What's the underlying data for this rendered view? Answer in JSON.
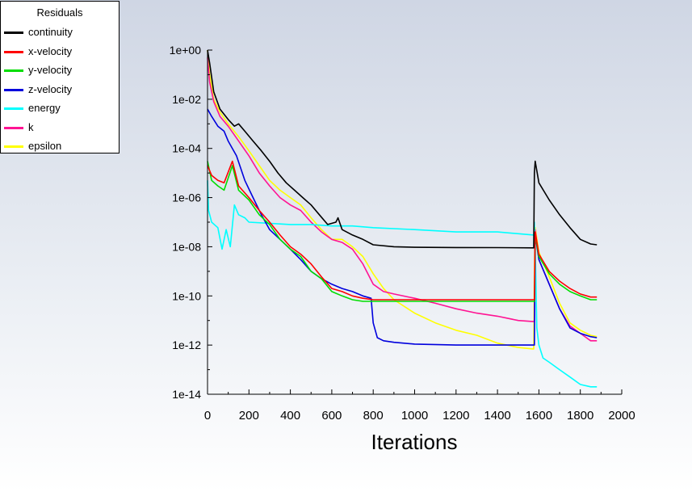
{
  "legend": {
    "title": "Residuals"
  },
  "chart_data": {
    "type": "line",
    "title": "",
    "xlabel": "Iterations",
    "ylabel": "",
    "log_y": true,
    "xlim": [
      0,
      2000
    ],
    "ylim": [
      1e-14,
      1
    ],
    "x_ticks": [
      "0",
      "200",
      "400",
      "600",
      "800",
      "1000",
      "1200",
      "1400",
      "1600",
      "1800",
      "2000"
    ],
    "y_ticks": [
      "1e+00",
      "1e-02",
      "1e-04",
      "1e-06",
      "1e-08",
      "1e-10",
      "1e-12",
      "1e-14"
    ],
    "x_tick_values": [
      0,
      200,
      400,
      600,
      800,
      1000,
      1200,
      1400,
      1600,
      1800,
      2000
    ],
    "y_tick_values": [
      1,
      0.01,
      0.0001,
      1e-06,
      1e-08,
      1e-10,
      1e-12,
      1e-14
    ],
    "grid": false,
    "legend_position": "top-left",
    "series": [
      {
        "name": "continuity",
        "color": "#000000",
        "x": [
          0,
          10,
          30,
          60,
          100,
          130,
          150,
          180,
          220,
          260,
          300,
          340,
          380,
          420,
          460,
          500,
          540,
          580,
          620,
          630,
          650,
          700,
          750,
          800,
          900,
          1000,
          1200,
          1400,
          1575,
          1578,
          1582,
          1600,
          1650,
          1700,
          1750,
          1800,
          1850,
          1880
        ],
        "y": [
          1,
          0.3,
          0.02,
          0.004,
          0.0015,
          0.0008,
          0.001,
          0.0005,
          0.0002,
          8e-05,
          3e-05,
          1e-05,
          4e-06,
          2e-06,
          1e-06,
          5e-07,
          2e-07,
          8e-08,
          1e-07,
          1.5e-07,
          5e-08,
          3e-08,
          2e-08,
          1.2e-08,
          1e-08,
          9.5e-09,
          9.3e-09,
          9.2e-09,
          9e-09,
          1e-05,
          3e-05,
          4e-06,
          8e-07,
          2e-07,
          6e-08,
          2e-08,
          1.3e-08,
          1.2e-08
        ]
      },
      {
        "name": "x-velocity",
        "color": "#ff0000",
        "x": [
          0,
          20,
          50,
          80,
          120,
          150,
          200,
          250,
          300,
          350,
          400,
          450,
          500,
          550,
          600,
          650,
          700,
          750,
          800,
          900,
          1000,
          1200,
          1400,
          1578,
          1582,
          1600,
          1650,
          1700,
          1750,
          1800,
          1850,
          1880
        ],
        "y": [
          2e-05,
          8e-06,
          5e-06,
          4e-06,
          3e-05,
          3e-06,
          1e-06,
          3e-07,
          1e-07,
          3e-08,
          1e-08,
          5e-09,
          2e-09,
          6e-10,
          2e-10,
          1.5e-10,
          1e-10,
          8e-11,
          7e-11,
          7e-11,
          7e-11,
          7e-11,
          7e-11,
          7e-11,
          4e-08,
          5e-09,
          1e-09,
          4e-10,
          2e-10,
          1.2e-10,
          9e-11,
          9e-11
        ]
      },
      {
        "name": "y-velocity",
        "color": "#00dd00",
        "x": [
          0,
          20,
          50,
          80,
          120,
          150,
          200,
          250,
          300,
          350,
          400,
          450,
          500,
          550,
          600,
          650,
          700,
          750,
          800,
          900,
          1000,
          1200,
          1400,
          1578,
          1582,
          1600,
          1650,
          1700,
          1750,
          1800,
          1850,
          1880
        ],
        "y": [
          3e-05,
          5e-06,
          3e-06,
          2e-06,
          2e-05,
          2e-06,
          8e-07,
          2e-07,
          8e-08,
          2e-08,
          8e-09,
          4e-09,
          1e-09,
          5e-10,
          1.5e-10,
          1e-10,
          7e-11,
          6e-11,
          6e-11,
          6e-11,
          6e-11,
          6e-11,
          6e-11,
          6e-11,
          3e-08,
          4e-09,
          8e-10,
          3e-10,
          1.5e-10,
          1e-10,
          7e-11,
          7e-11
        ]
      },
      {
        "name": "z-velocity",
        "color": "#0000dd",
        "x": [
          0,
          20,
          50,
          80,
          100,
          140,
          180,
          220,
          260,
          300,
          350,
          400,
          450,
          500,
          550,
          600,
          650,
          700,
          750,
          790,
          800,
          820,
          850,
          900,
          1000,
          1200,
          1400,
          1578,
          1582,
          1600,
          1650,
          1700,
          1750,
          1800,
          1850,
          1880
        ],
        "y": [
          0.004,
          0.002,
          0.0008,
          0.0005,
          0.0002,
          5e-05,
          5e-06,
          1e-06,
          2e-07,
          5e-08,
          2e-08,
          8e-09,
          3e-09,
          1e-09,
          5e-10,
          3e-10,
          2e-10,
          1.5e-10,
          1e-10,
          8e-11,
          8e-12,
          2e-12,
          1.5e-12,
          1.3e-12,
          1.1e-12,
          1e-12,
          1e-12,
          1e-12,
          3e-08,
          3e-09,
          3e-10,
          3e-11,
          5e-12,
          3e-12,
          2.2e-12,
          2e-12
        ]
      },
      {
        "name": "energy",
        "color": "#00ffff",
        "x": [
          0,
          5,
          20,
          50,
          70,
          90,
          110,
          130,
          150,
          180,
          200,
          300,
          400,
          500,
          600,
          700,
          800,
          1000,
          1200,
          1400,
          1575,
          1578,
          1582,
          1590,
          1600,
          1620,
          1650,
          1700,
          1750,
          1800,
          1850,
          1880
        ],
        "y": [
          5e-06,
          3e-07,
          1e-07,
          6e-08,
          8e-09,
          5e-08,
          1e-08,
          5e-07,
          2e-07,
          1.5e-07,
          1e-07,
          9e-08,
          8e-08,
          8e-08,
          7e-08,
          7e-08,
          6e-08,
          5e-08,
          4e-08,
          4e-08,
          3e-08,
          1e-07,
          1e-08,
          5e-12,
          1e-12,
          3e-13,
          2e-13,
          1e-13,
          5e-14,
          2.5e-14,
          2e-14,
          2e-14
        ]
      },
      {
        "name": "k",
        "color": "#ff1493",
        "x": [
          0,
          10,
          30,
          60,
          100,
          150,
          200,
          250,
          300,
          350,
          400,
          450,
          500,
          550,
          600,
          650,
          700,
          750,
          800,
          850,
          900,
          1000,
          1100,
          1200,
          1300,
          1400,
          1500,
          1575,
          1578,
          1582,
          1600,
          1650,
          1700,
          1750,
          1800,
          1850,
          1880
        ],
        "y": [
          0.5,
          0.05,
          0.008,
          0.002,
          0.0008,
          0.0002,
          5e-05,
          1e-05,
          3e-06,
          1e-06,
          5e-07,
          3e-07,
          1e-07,
          4e-08,
          2e-08,
          1.5e-08,
          8e-09,
          2e-09,
          3e-10,
          1.5e-10,
          1.2e-10,
          8e-11,
          5e-11,
          3e-11,
          2e-11,
          1.5e-11,
          1e-11,
          9e-12,
          1e-11,
          5e-08,
          3e-09,
          3e-10,
          3e-11,
          6e-12,
          3e-12,
          1.5e-12,
          1.5e-12
        ]
      },
      {
        "name": "epsilon",
        "color": "#ffff00",
        "x": [
          0,
          10,
          30,
          60,
          100,
          150,
          200,
          250,
          300,
          350,
          400,
          450,
          500,
          550,
          600,
          650,
          700,
          750,
          800,
          850,
          900,
          1000,
          1100,
          1200,
          1300,
          1400,
          1500,
          1570,
          1575,
          1578,
          1582,
          1600,
          1650,
          1700,
          1750,
          1800,
          1850,
          1880
        ],
        "y": [
          1,
          0.1,
          0.01,
          0.003,
          0.001,
          0.0003,
          8e-05,
          2e-05,
          5e-06,
          2e-06,
          1e-06,
          5e-07,
          1.5e-07,
          5e-08,
          2e-08,
          2e-08,
          1e-08,
          4e-09,
          8e-10,
          2e-10,
          7e-11,
          2e-11,
          8e-12,
          4e-12,
          2.5e-12,
          1.2e-12,
          8e-13,
          7e-13,
          7e-13,
          1e-09,
          6e-08,
          6e-09,
          6e-10,
          5e-11,
          8e-12,
          4e-12,
          2.5e-12,
          2.2e-12
        ]
      }
    ]
  }
}
